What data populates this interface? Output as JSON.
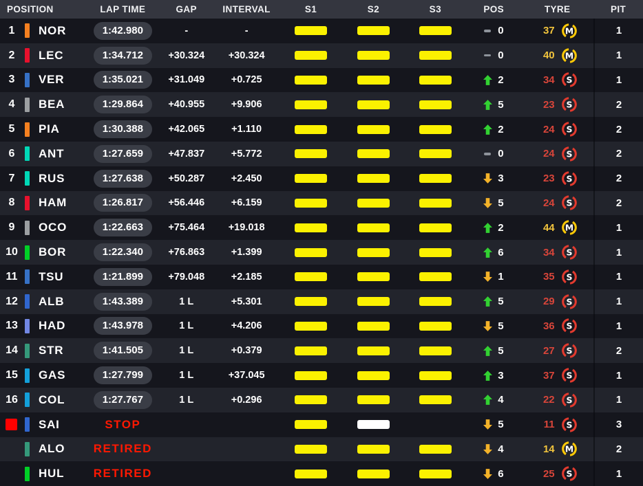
{
  "table": {
    "headers": {
      "position": "POSITION",
      "lap_time": "LAP TIME",
      "gap": "GAP",
      "interval": "INTERVAL",
      "s1": "S1",
      "s2": "S2",
      "s3": "S3",
      "pos": "POS",
      "tyre": "TYRE",
      "pit": "PIT"
    }
  },
  "colors": {
    "header_bg": "#34363F",
    "row_dark": "#15161D",
    "row_light": "#22242C",
    "sector_yellow": "#FBF100",
    "sector_white": "#FFFFFF",
    "up_green": "#32D132",
    "down_yellow": "#F3B229",
    "dash_gray": "#8E939B",
    "soft_ring_red": "#E23A2E",
    "medium_ring_yellow": "#FFC906",
    "soft_laps_red": "#D8453A",
    "medium_laps_yellow": "#F2C43D",
    "status_red": "#FF1801",
    "pill_bg": "#3A3D46",
    "red_flag": "#FE0000",
    "team_mclaren": "#F58020",
    "team_ferrari": "#E8112D",
    "team_redbull": "#3671C6",
    "team_haas": "#9C9FA2",
    "team_mercedes": "#00D7B6",
    "team_sauber": "#00CF26",
    "team_williams": "#3066CE",
    "team_racingbulls": "#7287E3",
    "team_astonmartin": "#35997A",
    "team_alpine": "#13A0DA"
  },
  "rows": [
    {
      "position": "1",
      "flag": "",
      "team_color": "#F58020",
      "driver": "NOR",
      "time": "1:42.980",
      "time_style": "pill",
      "gap": "-",
      "interval": "-",
      "s1": "yellow",
      "s2": "yellow",
      "s3": "yellow",
      "delta_dir": "none",
      "delta": "0",
      "tyre_laps": "37",
      "compound": "M",
      "pit": "1"
    },
    {
      "position": "2",
      "flag": "",
      "team_color": "#E8112D",
      "driver": "LEC",
      "time": "1:34.712",
      "time_style": "pill",
      "gap": "+30.324",
      "interval": "+30.324",
      "s1": "yellow",
      "s2": "yellow",
      "s3": "yellow",
      "delta_dir": "none",
      "delta": "0",
      "tyre_laps": "40",
      "compound": "M",
      "pit": "1"
    },
    {
      "position": "3",
      "flag": "",
      "team_color": "#3671C6",
      "driver": "VER",
      "time": "1:35.021",
      "time_style": "pill",
      "gap": "+31.049",
      "interval": "+0.725",
      "s1": "yellow",
      "s2": "yellow",
      "s3": "yellow",
      "delta_dir": "up",
      "delta": "2",
      "tyre_laps": "34",
      "compound": "S",
      "pit": "1"
    },
    {
      "position": "4",
      "flag": "",
      "team_color": "#9C9FA2",
      "driver": "BEA",
      "time": "1:29.864",
      "time_style": "pill",
      "gap": "+40.955",
      "interval": "+9.906",
      "s1": "yellow",
      "s2": "yellow",
      "s3": "yellow",
      "delta_dir": "up",
      "delta": "5",
      "tyre_laps": "23",
      "compound": "S",
      "pit": "2"
    },
    {
      "position": "5",
      "flag": "",
      "team_color": "#F58020",
      "driver": "PIA",
      "time": "1:30.388",
      "time_style": "pill",
      "gap": "+42.065",
      "interval": "+1.110",
      "s1": "yellow",
      "s2": "yellow",
      "s3": "yellow",
      "delta_dir": "up",
      "delta": "2",
      "tyre_laps": "24",
      "compound": "S",
      "pit": "2"
    },
    {
      "position": "6",
      "flag": "",
      "team_color": "#00D7B6",
      "driver": "ANT",
      "time": "1:27.659",
      "time_style": "pill",
      "gap": "+47.837",
      "interval": "+5.772",
      "s1": "yellow",
      "s2": "yellow",
      "s3": "yellow",
      "delta_dir": "none",
      "delta": "0",
      "tyre_laps": "24",
      "compound": "S",
      "pit": "2"
    },
    {
      "position": "7",
      "flag": "",
      "team_color": "#00D7B6",
      "driver": "RUS",
      "time": "1:27.638",
      "time_style": "pill",
      "gap": "+50.287",
      "interval": "+2.450",
      "s1": "yellow",
      "s2": "yellow",
      "s3": "yellow",
      "delta_dir": "down",
      "delta": "3",
      "tyre_laps": "23",
      "compound": "S",
      "pit": "2"
    },
    {
      "position": "8",
      "flag": "",
      "team_color": "#E8112D",
      "driver": "HAM",
      "time": "1:26.817",
      "time_style": "pill",
      "gap": "+56.446",
      "interval": "+6.159",
      "s1": "yellow",
      "s2": "yellow",
      "s3": "yellow",
      "delta_dir": "down",
      "delta": "5",
      "tyre_laps": "24",
      "compound": "S",
      "pit": "2"
    },
    {
      "position": "9",
      "flag": "",
      "team_color": "#9C9FA2",
      "driver": "OCO",
      "time": "1:22.663",
      "time_style": "pill",
      "gap": "+75.464",
      "interval": "+19.018",
      "s1": "yellow",
      "s2": "yellow",
      "s3": "yellow",
      "delta_dir": "up",
      "delta": "2",
      "tyre_laps": "44",
      "compound": "M",
      "pit": "1"
    },
    {
      "position": "10",
      "flag": "",
      "team_color": "#00CF26",
      "driver": "BOR",
      "time": "1:22.340",
      "time_style": "pill",
      "gap": "+76.863",
      "interval": "+1.399",
      "s1": "yellow",
      "s2": "yellow",
      "s3": "yellow",
      "delta_dir": "up",
      "delta": "6",
      "tyre_laps": "34",
      "compound": "S",
      "pit": "1"
    },
    {
      "position": "11",
      "flag": "",
      "team_color": "#3671C6",
      "driver": "TSU",
      "time": "1:21.899",
      "time_style": "pill",
      "gap": "+79.048",
      "interval": "+2.185",
      "s1": "yellow",
      "s2": "yellow",
      "s3": "yellow",
      "delta_dir": "down",
      "delta": "1",
      "tyre_laps": "35",
      "compound": "S",
      "pit": "1"
    },
    {
      "position": "12",
      "flag": "",
      "team_color": "#3066CE",
      "driver": "ALB",
      "time": "1:43.389",
      "time_style": "pill",
      "gap": "1 L",
      "interval": "+5.301",
      "s1": "yellow",
      "s2": "yellow",
      "s3": "yellow",
      "delta_dir": "up",
      "delta": "5",
      "tyre_laps": "29",
      "compound": "S",
      "pit": "1"
    },
    {
      "position": "13",
      "flag": "",
      "team_color": "#7287E3",
      "driver": "HAD",
      "time": "1:43.978",
      "time_style": "pill",
      "gap": "1 L",
      "interval": "+4.206",
      "s1": "yellow",
      "s2": "yellow",
      "s3": "yellow",
      "delta_dir": "down",
      "delta": "5",
      "tyre_laps": "36",
      "compound": "S",
      "pit": "1"
    },
    {
      "position": "14",
      "flag": "",
      "team_color": "#35997A",
      "driver": "STR",
      "time": "1:41.505",
      "time_style": "pill",
      "gap": "1 L",
      "interval": "+0.379",
      "s1": "yellow",
      "s2": "yellow",
      "s3": "yellow",
      "delta_dir": "up",
      "delta": "5",
      "tyre_laps": "27",
      "compound": "S",
      "pit": "2"
    },
    {
      "position": "15",
      "flag": "",
      "team_color": "#13A0DA",
      "driver": "GAS",
      "time": "1:27.799",
      "time_style": "pill",
      "gap": "1 L",
      "interval": "+37.045",
      "s1": "yellow",
      "s2": "yellow",
      "s3": "yellow",
      "delta_dir": "up",
      "delta": "3",
      "tyre_laps": "37",
      "compound": "S",
      "pit": "1"
    },
    {
      "position": "16",
      "flag": "",
      "team_color": "#13A0DA",
      "driver": "COL",
      "time": "1:27.767",
      "time_style": "pill",
      "gap": "1 L",
      "interval": "+0.296",
      "s1": "yellow",
      "s2": "yellow",
      "s3": "yellow",
      "delta_dir": "up",
      "delta": "4",
      "tyre_laps": "22",
      "compound": "S",
      "pit": "1"
    },
    {
      "position": "",
      "flag": "red",
      "team_color": "#3066CE",
      "driver": "SAI",
      "time": "STOP",
      "time_style": "status",
      "gap": "",
      "interval": "",
      "s1": "yellow",
      "s2": "white",
      "s3": "none",
      "delta_dir": "down",
      "delta": "5",
      "tyre_laps": "11",
      "compound": "S",
      "pit": "3"
    },
    {
      "position": "",
      "flag": "",
      "team_color": "#35997A",
      "driver": "ALO",
      "time": "RETIRED",
      "time_style": "status",
      "gap": "",
      "interval": "",
      "s1": "yellow",
      "s2": "yellow",
      "s3": "yellow",
      "delta_dir": "down",
      "delta": "4",
      "tyre_laps": "14",
      "compound": "M",
      "pit": "2"
    },
    {
      "position": "",
      "flag": "",
      "team_color": "#00CF26",
      "driver": "HUL",
      "time": "RETIRED",
      "time_style": "status",
      "gap": "",
      "interval": "",
      "s1": "yellow",
      "s2": "yellow",
      "s3": "yellow",
      "delta_dir": "down",
      "delta": "6",
      "tyre_laps": "25",
      "compound": "S",
      "pit": "1"
    }
  ]
}
